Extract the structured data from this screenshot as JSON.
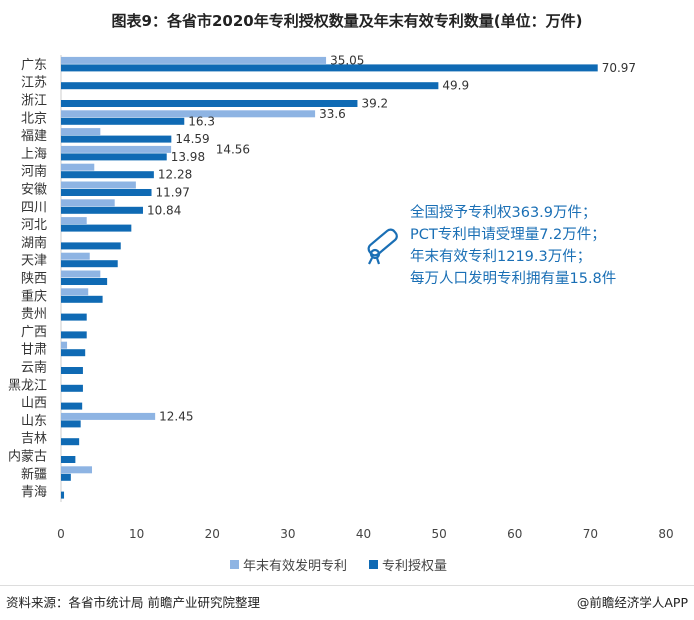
{
  "title": "图表9：各省市2020年专利授权数量及年末有效专利数量(单位：万件)",
  "chart_data": {
    "type": "bar",
    "orientation": "horizontal",
    "categories": [
      "广东",
      "江苏",
      "浙江",
      "北京",
      "福建",
      "上海",
      "河南",
      "安徽",
      "四川",
      "河北",
      "湖南",
      "天津",
      "陕西",
      "重庆",
      "贵州",
      "广西",
      "甘肃",
      "云南",
      "黑龙江",
      "山西",
      "山东",
      "吉林",
      "内蒙古",
      "新疆",
      "青海"
    ],
    "series": [
      {
        "name": "年末有效发明专利",
        "color": "#8eb4e3",
        "values": [
          35.05,
          null,
          null,
          33.6,
          5.2,
          14.56,
          4.4,
          9.9,
          7.1,
          3.4,
          null,
          3.8,
          5.2,
          3.6,
          null,
          null,
          0.8,
          null,
          null,
          null,
          12.45,
          null,
          null,
          4.1,
          null
        ],
        "labels": [
          "35.05",
          "",
          "",
          "33.6",
          "",
          "14.56",
          "",
          "",
          "",
          "",
          "",
          "",
          "",
          "",
          "",
          "",
          "",
          "",
          "",
          "",
          "12.45",
          "",
          "",
          "",
          ""
        ]
      },
      {
        "name": "专利授权量",
        "color": "#0f6ab4",
        "values": [
          70.97,
          49.9,
          39.2,
          16.3,
          14.59,
          13.98,
          12.28,
          11.97,
          10.84,
          9.3,
          7.9,
          7.5,
          6.1,
          5.5,
          3.4,
          3.4,
          3.2,
          2.9,
          2.9,
          2.8,
          2.6,
          2.4,
          1.9,
          1.3,
          0.4
        ],
        "labels": [
          "70.97",
          "49.9",
          "39.2",
          "16.3",
          "14.59",
          "13.98",
          "12.28",
          "11.97",
          "10.84",
          "",
          "",
          "",
          "",
          "",
          "",
          "",
          "",
          "",
          "",
          "",
          "",
          "",
          "",
          "",
          ""
        ]
      }
    ],
    "xlim": [
      0,
      80
    ],
    "xticks": [
      "0",
      "10",
      "20",
      "30",
      "40",
      "50",
      "60",
      "70",
      "80"
    ],
    "grid": false,
    "legend": "bottom"
  },
  "note": {
    "lines": [
      "全国授予专利权363.9万件；",
      "PCT专利申请受理量7.2万件；",
      "年末有效专利1219.3万件；",
      "每万人口发明专利拥有量15.8件"
    ],
    "icon": "diploma-scroll-icon"
  },
  "footer": {
    "source": "资料来源：各省市统计局 前瞻产业研究院整理",
    "credit": "@前瞻经济学人APP"
  }
}
